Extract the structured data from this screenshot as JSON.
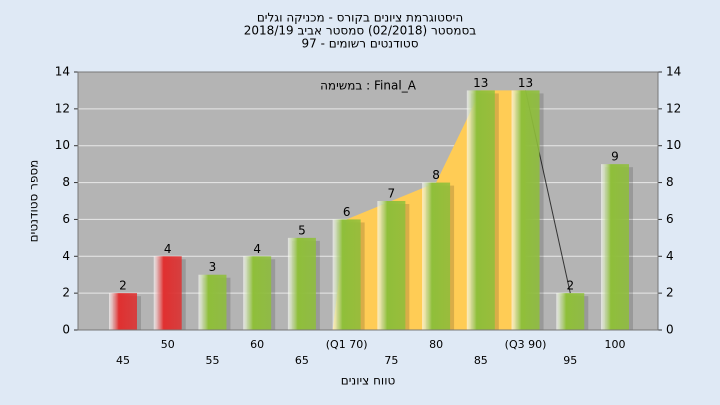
{
  "chart_data": {
    "type": "bar",
    "title": [
      "היסטוגרמת ציונים בקורס - מכניקה וגלים",
      "בסמסטר  (02/2018)  סמסטר אביב 2018/19",
      "סטודנטים רשומים - 97"
    ],
    "annotation": "במשימה : Final_A",
    "x_label": "טווח ציונים",
    "y_label": "מספר סטודנטים",
    "categories": [
      "45",
      "50",
      "55",
      "60",
      "65",
      "(Q1 70)",
      "75",
      "80",
      "85",
      "(Q3 90)",
      "95",
      "100"
    ],
    "values": [
      2,
      4,
      3,
      4,
      5,
      6,
      7,
      8,
      13,
      13,
      2,
      9
    ],
    "colors": [
      "#e03030",
      "#e03030",
      "#8fbf3a",
      "#8fbf3a",
      "#8fbf3a",
      "#8fbf3a",
      "#8fbf3a",
      "#8fbf3a",
      "#8fbf3a",
      "#8fbf3a",
      "#8fbf3a",
      "#8fbf3a"
    ],
    "area_color": "#ffcc55",
    "ylim": [
      0,
      14
    ],
    "yticks": [
      0,
      2,
      4,
      6,
      8,
      10,
      12,
      14
    ],
    "y2ticks": [
      0,
      2,
      4,
      6,
      8,
      10,
      12,
      14
    ],
    "grid": true
  }
}
